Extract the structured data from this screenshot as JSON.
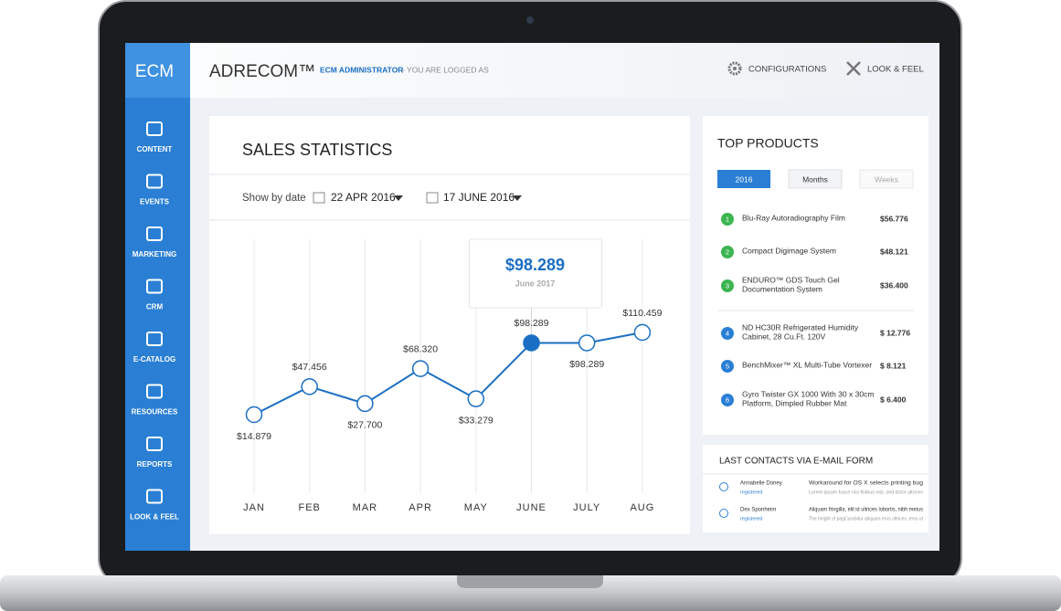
{
  "sidebar": {
    "logo": "ECM",
    "items": [
      "CONTENT",
      "EVENTS",
      "MARKETING",
      "CRM",
      "E-CATALOG",
      "RESOURCES",
      "REPORTS",
      "LOOK & FEEL"
    ]
  },
  "header": {
    "brand": "ADRECOM™",
    "user": "ECM ADMINISTRATOR",
    "status": " - YOU ARE LOGGED AS",
    "actions": [
      "CONFIGURATIONS",
      "LOOK & FEEL"
    ]
  },
  "chart_data": {
    "type": "line",
    "title": "SALES STATISTICS",
    "filter_label": "Show by date",
    "date_from": "22 APR 2016",
    "date_to": "17 JUNE 2016",
    "categories": [
      "JAN",
      "FEB",
      "MAR",
      "APR",
      "MAY",
      "JUNE",
      "JULY",
      "AUG"
    ],
    "values": [
      14.879,
      47.456,
      27.7,
      68.32,
      33.279,
      98.289,
      98.289,
      110.459
    ],
    "value_labels": [
      "$14.879",
      "$47.456",
      "$27.700",
      "$68.320",
      "$33.279",
      "$98.289",
      "$98.289",
      "$110.459"
    ],
    "color": "#1a6fc4",
    "active": "JUNE",
    "tooltip": {
      "label": "$98.289",
      "date": "June 2017"
    }
  },
  "top_products": {
    "title": "TOP PRODUCTS",
    "filters": [
      "2016",
      "Months",
      "Weeks"
    ],
    "items": [
      {
        "rank": 1,
        "name": [
          "Blu-Ray Autoradiography Film"
        ],
        "price": "$56.776"
      },
      {
        "rank": 2,
        "name": [
          "Compact Digimage System"
        ],
        "price": "$48.121"
      },
      {
        "rank": 3,
        "name": [
          "ENDURO™ GDS Touch Gel",
          "Documentation System"
        ],
        "price": "$36.400"
      },
      {
        "rank": 4,
        "name": [
          "ND HC30R Refrigerated Humidity",
          "Cabinet, 28 Cu.Ft. 120V"
        ],
        "price": "$ 12.776"
      },
      {
        "rank": 5,
        "name": [
          "BenchMixer™ XL Multi-Tube Vortexer"
        ],
        "price": "$ 8.121"
      },
      {
        "rank": 6,
        "name": [
          "Gyro Twister GX 1000 With 30 x 30cm",
          "Platform, Dimpled Rubber Mat"
        ],
        "price": "$ 6.400"
      }
    ]
  },
  "contacts": {
    "title": "LAST CONTACTS VIA E-MAIL FORM",
    "rows": [
      {
        "name": "Annabelle Doney",
        "status": "registered",
        "subject": "Workaround for OS X selects printing bug",
        "preview": "Lorem ipsum fusce nisi finibus nisi, sed dolor ultrices"
      },
      {
        "name": "Dex Sponheim",
        "status": "registered",
        "subject": "Aliquam fringilla, elit id ultrices lobortis, nibh metus",
        "preview": "The height of pagCurabitur aliquam eros ultrices, eros ut"
      }
    ]
  }
}
